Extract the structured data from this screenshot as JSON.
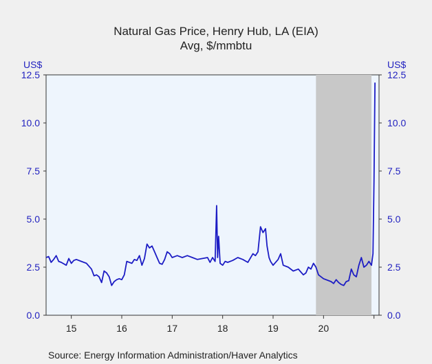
{
  "chart_data": {
    "type": "line",
    "title": "Natural Gas Price, Henry Hub, LA (EIA)",
    "subtitle": "Avg, $/mmbtu",
    "ylabel_left": "US$",
    "ylabel_right": "US$",
    "ylim": [
      0,
      12.5
    ],
    "yticks": [
      "0.0",
      "2.5",
      "5.0",
      "7.5",
      "10.0",
      "12.5"
    ],
    "xlim": [
      2014.5,
      2021.1
    ],
    "xticks": [
      "15",
      "16",
      "17",
      "18",
      "19",
      "20"
    ],
    "grid": false,
    "shaded_region": [
      2019.85,
      2020.95
    ],
    "colors": {
      "line": "#1c1cc4",
      "shade": "#c8c8c8",
      "plot_bg": "#eef5fd",
      "axis_text": "#1f1fbf"
    },
    "series": [
      {
        "x": [
          2014.5,
          2014.55,
          2014.6,
          2014.65,
          2014.7,
          2014.75,
          2014.8,
          2014.9,
          2014.95,
          2015.0,
          2015.05,
          2015.1,
          2015.2,
          2015.3,
          2015.35,
          2015.4,
          2015.45,
          2015.5,
          2015.55,
          2015.6,
          2015.65,
          2015.7,
          2015.75,
          2015.8,
          2015.85,
          2015.9,
          2015.95,
          2016.0,
          2016.05,
          2016.1,
          2016.2,
          2016.25,
          2016.3,
          2016.35,
          2016.4,
          2016.45,
          2016.5,
          2016.55,
          2016.6,
          2016.65,
          2016.7,
          2016.75,
          2016.8,
          2016.85,
          2016.9,
          2016.95,
          2017.0,
          2017.1,
          2017.2,
          2017.3,
          2017.4,
          2017.5,
          2017.6,
          2017.7,
          2017.75,
          2017.8,
          2017.85,
          2017.88,
          2017.9,
          2017.92,
          2017.95,
          2018.0,
          2018.05,
          2018.1,
          2018.2,
          2018.3,
          2018.4,
          2018.5,
          2018.6,
          2018.65,
          2018.7,
          2018.75,
          2018.8,
          2018.85,
          2018.88,
          2018.92,
          2018.95,
          2019.0,
          2019.1,
          2019.15,
          2019.2,
          2019.3,
          2019.4,
          2019.5,
          2019.55,
          2019.6,
          2019.65,
          2019.7,
          2019.75,
          2019.8,
          2019.85,
          2019.9,
          2020.0,
          2020.1,
          2020.15,
          2020.2,
          2020.25,
          2020.3,
          2020.35,
          2020.4,
          2020.45,
          2020.5,
          2020.55,
          2020.6,
          2020.65,
          2020.7,
          2020.75,
          2020.8,
          2020.85,
          2020.9,
          2020.95,
          2020.98,
          2021.0,
          2021.02
        ],
        "y": [
          3.0,
          3.05,
          2.75,
          2.9,
          3.1,
          2.8,
          2.75,
          2.6,
          2.95,
          2.7,
          2.85,
          2.9,
          2.8,
          2.7,
          2.55,
          2.4,
          2.05,
          2.1,
          2.0,
          1.7,
          2.3,
          2.2,
          2.0,
          1.55,
          1.75,
          1.85,
          1.9,
          1.85,
          2.1,
          2.8,
          2.7,
          2.9,
          2.85,
          3.1,
          2.6,
          2.95,
          3.7,
          3.5,
          3.6,
          3.3,
          3.0,
          2.7,
          2.65,
          2.9,
          3.3,
          3.2,
          3.0,
          3.1,
          3.0,
          3.1,
          3.0,
          2.9,
          2.95,
          3.0,
          2.75,
          3.0,
          2.8,
          5.7,
          3.0,
          4.1,
          2.7,
          2.6,
          2.8,
          2.75,
          2.85,
          3.0,
          2.9,
          2.75,
          3.2,
          3.1,
          3.3,
          4.6,
          4.3,
          4.5,
          3.6,
          3.0,
          2.8,
          2.6,
          2.9,
          3.2,
          2.6,
          2.5,
          2.3,
          2.4,
          2.25,
          2.1,
          2.2,
          2.5,
          2.4,
          2.7,
          2.5,
          2.1,
          1.9,
          1.8,
          1.75,
          1.65,
          1.85,
          1.7,
          1.6,
          1.55,
          1.75,
          1.8,
          2.4,
          2.1,
          2.0,
          2.6,
          3.0,
          2.5,
          2.6,
          2.8,
          2.6,
          3.2,
          7.0,
          12.1
        ]
      }
    ]
  },
  "source": "Source:  Energy Information Administration/Haver Analytics"
}
